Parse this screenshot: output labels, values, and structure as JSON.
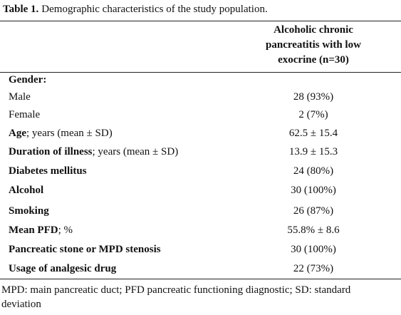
{
  "caption": {
    "label": "Table 1.",
    "text": "Demographic characteristics of the study population."
  },
  "header": [
    "Alcoholic chronic",
    "pancreatitis with low",
    "exocrine (n=30)"
  ],
  "rows": [
    {
      "bold": "Gender:"
    },
    {
      "text": "Male",
      "value": "28 (93%)"
    },
    {
      "text": "Female",
      "value": "2 (7%)"
    },
    {
      "bold": "Age",
      "text": "; years (mean ± SD)",
      "value": "62.5 ± 15.4"
    },
    {
      "bold": "Duration of illness",
      "text": "; years (mean ± SD)",
      "value": "13.9 ± 15.3"
    },
    {
      "bold": "Diabetes mellitus",
      "value": "24 (80%)"
    },
    {
      "bold": "Alcohol",
      "value": "30 (100%)"
    },
    {
      "bold": "Smoking",
      "value": "26 (87%)"
    },
    {
      "bold": "Mean PFD",
      "text": "; %",
      "value": "55.8% ± 8.6"
    },
    {
      "bold": "Pancreatic stone or MPD stenosis",
      "value": "30 (100%)"
    },
    {
      "bold": "Usage of analgesic drug",
      "value": "22 (73%)"
    }
  ],
  "footnote": "MPD: main pancreatic duct; PFD pancreatic functioning diagnostic; SD: standard deviation"
}
